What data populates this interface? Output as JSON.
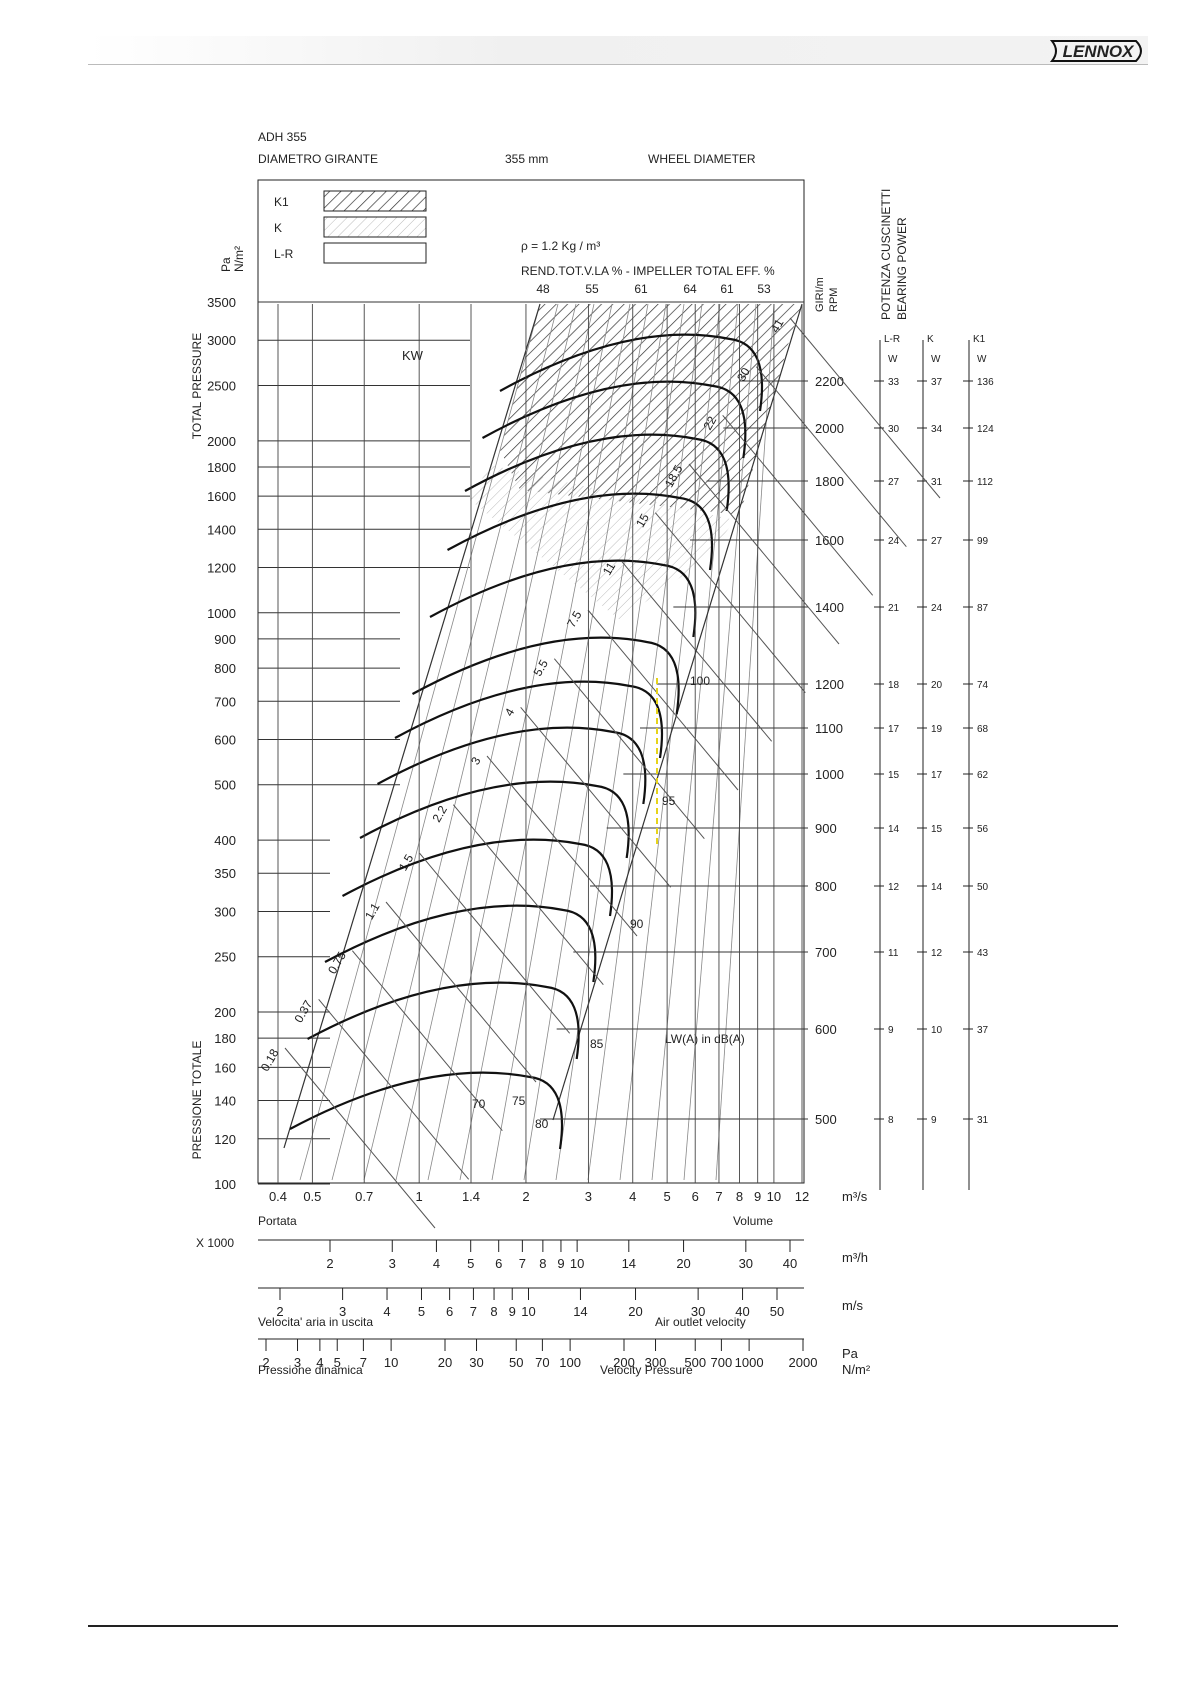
{
  "brand": {
    "logo_text": "LENNOX"
  },
  "chart_data": {
    "type": "line",
    "model": "ADH 355",
    "header_left": "DIAMETRO GIRANTE",
    "header_mid": "355 mm",
    "header_right": "WHEEL DIAMETER",
    "legend": [
      {
        "name": "K1",
        "pattern": "dense-hatch"
      },
      {
        "name": "K",
        "pattern": "light-hatch"
      },
      {
        "name": "L-R",
        "pattern": "plain"
      }
    ],
    "density_label": "ρ = 1.2 Kg / m³",
    "efficiency_title": "REND.TOT.V.LA % - IMPELLER TOTAL EFF. %",
    "efficiency_values": [
      "48",
      "55",
      "61",
      "64",
      "61",
      "53"
    ],
    "kw_label": "KW",
    "lw_label": "LW(A) in dB(A)",
    "y_label_top": "TOTAL PRESSURE",
    "y_label_bottom": "PRESSIONE TOTALE",
    "y_unit_1": "Pa",
    "y_unit_2": "N/m²",
    "y_scale": "log",
    "ylim": [
      100,
      3500
    ],
    "y_ticks": [
      "3500",
      "3000",
      "2500",
      "2000",
      "1800",
      "1600",
      "1400",
      "1200",
      "1000",
      "900",
      "800",
      "700",
      "600",
      "500",
      "400",
      "350",
      "300",
      "250",
      "200",
      "180",
      "160",
      "140",
      "120",
      "100"
    ],
    "x_scale": "log",
    "xlim": [
      0.4,
      12
    ],
    "x_ticks": [
      "0.4",
      "0.5",
      "0.7",
      "1",
      "1.4",
      "2",
      "3",
      "4",
      "5",
      "6",
      "7",
      "8",
      "9",
      "10",
      "12"
    ],
    "x_unit": "m³/s",
    "x_label_left": "Portata",
    "x_label_right": "Volume",
    "rpm_label_1": "GIRI/m",
    "rpm_label_2": "RPM",
    "rpm_curves": [
      {
        "rpm": "2200",
        "bearing": {
          "L-R": "33",
          "K": "37",
          "K1": "136"
        }
      },
      {
        "rpm": "2000",
        "bearing": {
          "L-R": "30",
          "K": "34",
          "K1": "124"
        }
      },
      {
        "rpm": "1800",
        "bearing": {
          "L-R": "27",
          "K": "31",
          "K1": "112"
        }
      },
      {
        "rpm": "1600",
        "bearing": {
          "L-R": "24",
          "K": "27",
          "K1": "99"
        }
      },
      {
        "rpm": "1400",
        "bearing": {
          "L-R": "21",
          "K": "24",
          "K1": "87"
        }
      },
      {
        "rpm": "1200",
        "bearing": {
          "L-R": "18",
          "K": "20",
          "K1": "74"
        }
      },
      {
        "rpm": "1100",
        "bearing": {
          "L-R": "17",
          "K": "19",
          "K1": "68"
        }
      },
      {
        "rpm": "1000",
        "bearing": {
          "L-R": "15",
          "K": "17",
          "K1": "62"
        }
      },
      {
        "rpm": "900",
        "bearing": {
          "L-R": "14",
          "K": "15",
          "K1": "56"
        }
      },
      {
        "rpm": "800",
        "bearing": {
          "L-R": "12",
          "K": "14",
          "K1": "50"
        }
      },
      {
        "rpm": "700",
        "bearing": {
          "L-R": "11",
          "K": "12",
          "K1": "43"
        }
      },
      {
        "rpm": "600",
        "bearing": {
          "L-R": "9",
          "K": "10",
          "K1": "37"
        }
      },
      {
        "rpm": "500",
        "bearing": {
          "L-R": "8",
          "K": "9",
          "K1": "31"
        }
      }
    ],
    "bearing_title_1": "POTENZA CUSCINETTI",
    "bearing_title_2": "BEARING POWER",
    "bearing_cols": [
      "L-R",
      "K",
      "K1"
    ],
    "bearing_unit": "W",
    "kw_lines": [
      "41",
      "30",
      "22",
      "18.5",
      "15",
      "11",
      "7.5",
      "5.5",
      "4",
      "3",
      "2.2",
      "1.5",
      "1.1",
      "0.75",
      "0.37",
      "0.18"
    ],
    "noise_values": [
      "100",
      "95",
      "90",
      "85",
      "80",
      "75",
      "70"
    ],
    "scales": {
      "m3h": {
        "prefix": "X 1000",
        "unit": "m³/h",
        "ticks": [
          "2",
          "3",
          "4",
          "5",
          "6",
          "7",
          "8",
          "9",
          "10",
          "14",
          "20",
          "30",
          "40"
        ]
      },
      "velocity": {
        "unit": "m/s",
        "label_left": "Velocita' aria in uscita",
        "label_right": "Air outlet velocity",
        "ticks": [
          "2",
          "3",
          "4",
          "5",
          "6",
          "7",
          "8",
          "9",
          "10",
          "14",
          "20",
          "30",
          "40",
          "50"
        ]
      },
      "vpressure": {
        "unit_1": "Pa",
        "unit_2": "N/m²",
        "label_left": "Pressione dinamica",
        "label_right": "Velocity Pressure",
        "ticks": [
          "2",
          "3",
          "4",
          "5",
          "7",
          "10",
          "20",
          "30",
          "50",
          "70",
          "100",
          "200",
          "300",
          "500",
          "700",
          "1000",
          "2000"
        ]
      }
    }
  }
}
